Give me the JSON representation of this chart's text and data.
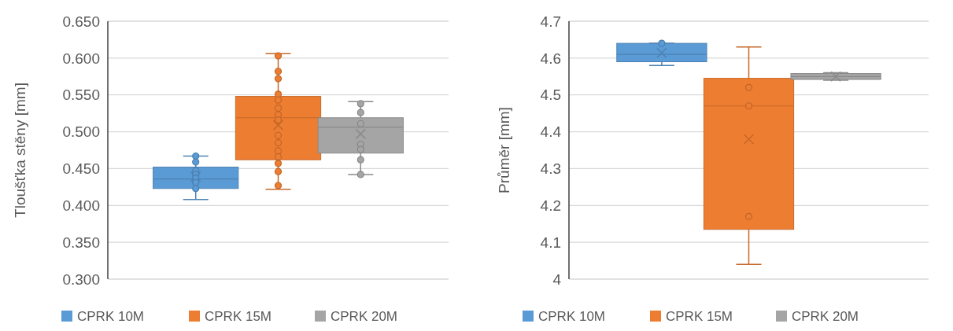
{
  "chart_data": [
    {
      "type": "box",
      "ylabel": "Tloušťka stěny [mm]",
      "categories": [
        null
      ],
      "ylim": [
        0.3,
        0.65
      ],
      "yticks": [
        {
          "value": 0.3,
          "label": "0.300"
        },
        {
          "value": 0.35,
          "label": "0.350"
        },
        {
          "value": 0.4,
          "label": "0.400"
        },
        {
          "value": 0.45,
          "label": "0.450"
        },
        {
          "value": 0.5,
          "label": "0.500"
        },
        {
          "value": 0.55,
          "label": "0.550"
        },
        {
          "value": 0.6,
          "label": "0.600"
        },
        {
          "value": 0.65,
          "label": "0.650"
        }
      ],
      "grid": "y",
      "legend": "bottom",
      "tick_labels": "y",
      "marker": "circle",
      "series": [
        {
          "name": "CPRK 10M",
          "color": "#5b9bd5",
          "boxes": [
            {
              "low": 0.408,
              "q1": 0.423,
              "median": 0.436,
              "q3": 0.452,
              "high": 0.467,
              "mean": 0.439
            }
          ]
        },
        {
          "name": "CPRK 15M",
          "color": "#ed7d31",
          "boxes": [
            {
              "low": 0.422,
              "q1": 0.462,
              "median": 0.519,
              "q3": 0.548,
              "high": 0.606,
              "mean": 0.509
            }
          ]
        },
        {
          "name": "CPRK 20M",
          "color": "#a5a5a5",
          "boxes": [
            {
              "low": 0.442,
              "q1": 0.471,
              "median": 0.506,
              "q3": 0.519,
              "high": 0.541,
              "mean": 0.497
            }
          ]
        },
        {
          "type": "scatter",
          "color": "#5b9bd5",
          "x": [
            null,
            null,
            null,
            null,
            null,
            null,
            null
          ],
          "values": [
            0.467,
            0.459,
            0.447,
            0.442,
            0.437,
            0.431,
            0.423
          ]
        },
        {
          "type": "scatter",
          "color": "#ed7d31",
          "x": [
            null,
            null,
            null,
            null,
            null,
            null,
            null,
            null,
            null,
            null,
            null,
            null,
            null,
            null,
            null
          ],
          "values": [
            0.603,
            0.582,
            0.572,
            0.551,
            0.543,
            0.532,
            0.523,
            0.516,
            0.495,
            0.485,
            0.474,
            0.466,
            0.457,
            0.446,
            0.427
          ]
        },
        {
          "type": "scatter",
          "color": "#a5a5a5",
          "x": [
            null,
            null,
            null,
            null,
            null,
            null,
            null
          ],
          "values": [
            0.538,
            0.526,
            0.511,
            0.483,
            0.476,
            0.462,
            0.442
          ]
        }
      ]
    },
    {
      "type": "box",
      "ylabel": "Průměr [mm]",
      "categories": [
        null
      ],
      "ylim": [
        4,
        4.7
      ],
      "yticks": [
        4,
        4.1,
        4.2,
        4.3,
        4.4,
        4.5,
        4.6,
        4.7
      ],
      "grid": "y",
      "legend": "bottom",
      "tick_labels": "y",
      "marker": "circle",
      "series": [
        {
          "name": "CPRK 10M",
          "color": "#5b9bd5",
          "boxes": [
            {
              "low": 4.58,
              "q1": 4.59,
              "median": 4.61,
              "q3": 4.64,
              "high": 4.64,
              "mean": 4.614
            }
          ]
        },
        {
          "name": "CPRK 15M",
          "color": "#ed7d31",
          "boxes": [
            {
              "low": 4.04,
              "q1": 4.135,
              "median": 4.47,
              "q3": 4.545,
              "high": 4.63,
              "mean": 4.38
            }
          ]
        },
        {
          "name": "CPRK 20M",
          "color": "#a5a5a5",
          "boxes": [
            {
              "low": 4.54,
              "q1": 4.542,
              "median": 4.55,
              "q3": 4.558,
              "high": 4.56,
              "mean": 4.55
            }
          ]
        },
        {
          "type": "scatter",
          "color": "#5b9bd5",
          "x": [
            null
          ],
          "values": [
            4.64
          ]
        },
        {
          "type": "scatter",
          "color": "#ed7d31",
          "x": [
            null,
            null,
            null
          ],
          "values": [
            4.52,
            4.47,
            4.17
          ]
        }
      ]
    }
  ]
}
